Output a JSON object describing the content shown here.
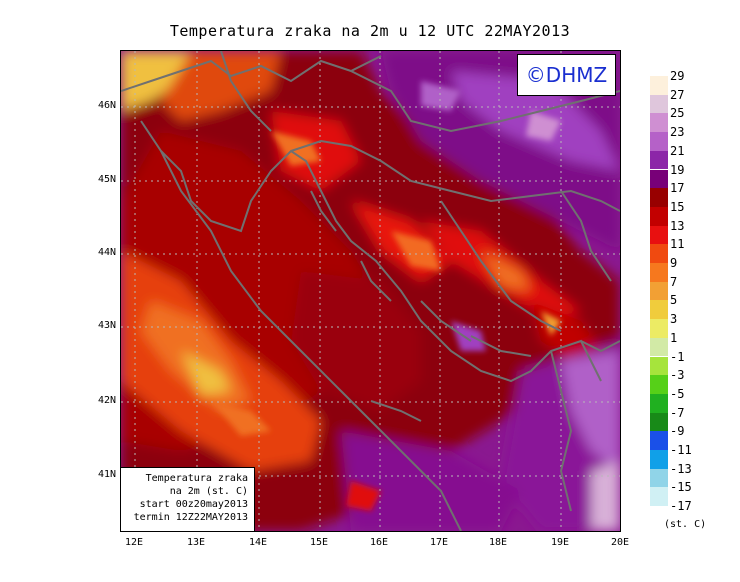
{
  "title": "Temperatura zraka na 2m u 12 UTC 22MAY2013",
  "credit": "©DHMZ",
  "info_box": {
    "line1": "Temperatura zraka",
    "line2": "na 2m (st. C)",
    "line3": "start 00z20may2013",
    "line4": "termin 12Z22MAY2013"
  },
  "lat_labels": [
    "46N",
    "45N",
    "44N",
    "43N",
    "42N",
    "41N"
  ],
  "lon_labels": [
    "12E",
    "13E",
    "14E",
    "15E",
    "16E",
    "17E",
    "18E",
    "19E",
    "20E"
  ],
  "legend": {
    "unit": "(st. C)",
    "labels": [
      "29",
      "27",
      "25",
      "23",
      "21",
      "19",
      "17",
      "15",
      "13",
      "11",
      "9",
      "7",
      "5",
      "3",
      "1",
      "-1",
      "-3",
      "-5",
      "-7",
      "-9",
      "-11",
      "-13",
      "-15",
      "-17"
    ],
    "colors": [
      "#fdf0dc",
      "#dfc6dc",
      "#cf8fd2",
      "#b561c8",
      "#8c26a8",
      "#780078",
      "#980000",
      "#c20000",
      "#e81010",
      "#f04a10",
      "#f6781e",
      "#f2a034",
      "#f0cc3c",
      "#eceb64",
      "#d2eaa6",
      "#a6e43c",
      "#56d018",
      "#20b020",
      "#188a18",
      "#1a50e8",
      "#10a0e8",
      "#90d4e8",
      "#d0f0f4"
    ]
  },
  "icons": {
    "map": "weather-map"
  }
}
